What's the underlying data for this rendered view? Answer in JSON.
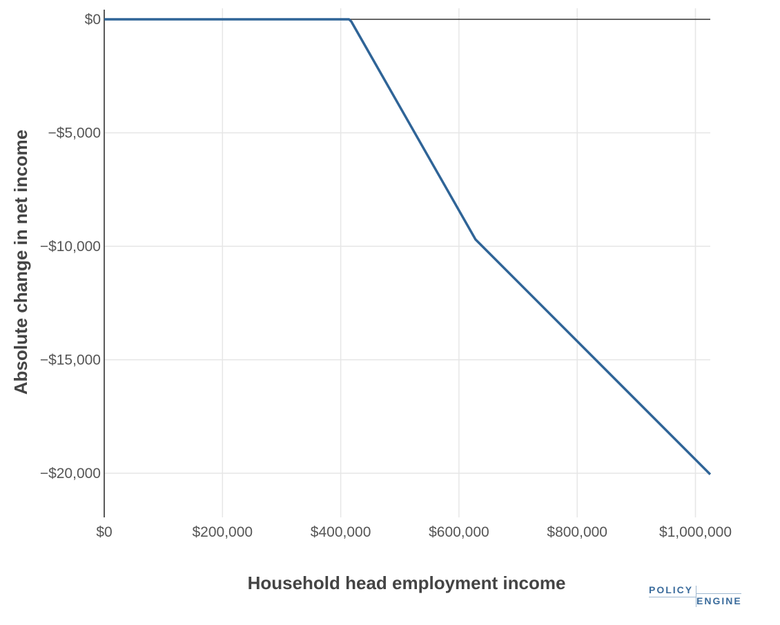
{
  "chart_data": {
    "type": "line",
    "xlabel": "Household head employment income",
    "ylabel": "Absolute change in net income",
    "xlim": [
      0,
      1025000
    ],
    "ylim": [
      -22000,
      0
    ],
    "x_ticks": [
      0,
      200000,
      400000,
      600000,
      800000,
      1000000
    ],
    "x_tick_labels": [
      "$0",
      "$200,000",
      "$400,000",
      "$600,000",
      "$800,000",
      "$1,000,000"
    ],
    "y_ticks": [
      0,
      -5000,
      -10000,
      -15000,
      -20000
    ],
    "y_tick_labels": [
      "$0",
      "−$5,000",
      "−$10,000",
      "−$15,000",
      "−$20,000"
    ],
    "grid": true,
    "series": [
      {
        "color": "#2f6497",
        "points": [
          [
            0,
            0
          ],
          [
            414000,
            0
          ],
          [
            418000,
            -100
          ],
          [
            628000,
            -9700
          ],
          [
            1025000,
            -20050
          ]
        ]
      }
    ]
  },
  "logo": {
    "line1": "POLICY",
    "line2": "ENGINE"
  }
}
